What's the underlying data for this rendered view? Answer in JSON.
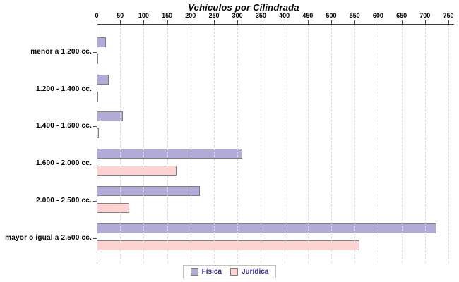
{
  "chart_data": {
    "type": "bar",
    "orientation": "horizontal",
    "title": "Vehículos por Cilindrada",
    "categories": [
      "menor a 1.200 cc.",
      "1.200 - 1.400 cc.",
      "1.400 - 1.600 cc.",
      "1.600 - 2.000 cc.",
      "2.000 - 2.500 cc.",
      "mayor o igual a 2.500 cc."
    ],
    "series": [
      {
        "name": "Física",
        "color": "#b4aad7",
        "border_color": "#7f7f7f",
        "values": [
          20,
          25,
          55,
          310,
          220,
          725
        ]
      },
      {
        "name": "Jurídica",
        "color": "#ffd2d2",
        "border_color": "#7f7f7f",
        "values": [
          3,
          1,
          5,
          170,
          70,
          560
        ]
      }
    ],
    "xlim": [
      0,
      750
    ],
    "x_ticks": [
      0,
      50,
      100,
      150,
      200,
      250,
      300,
      350,
      400,
      450,
      500,
      550,
      600,
      650,
      700,
      750
    ],
    "grid": "vertical-dashed",
    "legend_position": "bottom",
    "axis_color": "#3c3c3c",
    "gridline_color": "#dcdcdc",
    "legend_text_color": "#2e2b84"
  }
}
